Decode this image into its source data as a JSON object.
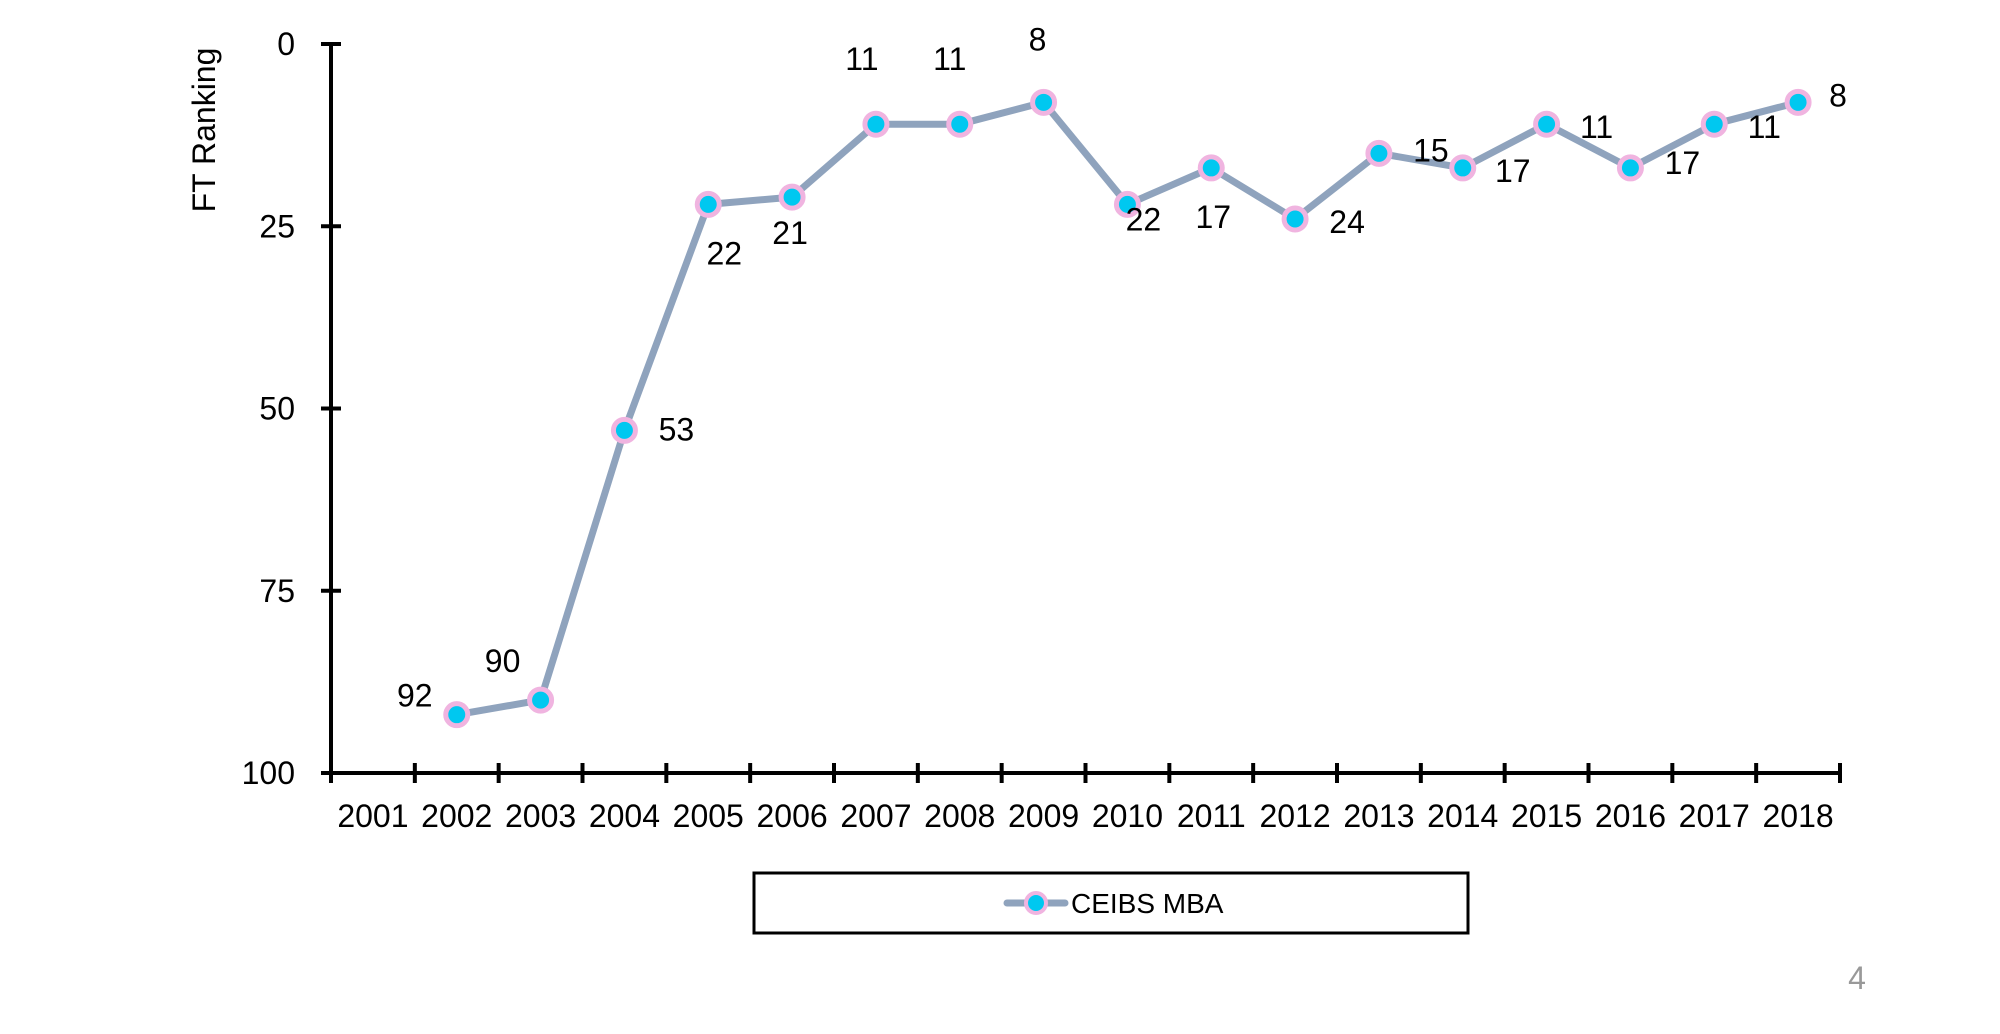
{
  "chart_data": {
    "type": "line",
    "title": "",
    "xlabel": "",
    "ylabel": "FT Ranking",
    "y_inverted": true,
    "ylim": [
      0,
      100
    ],
    "y_ticks": [
      0,
      25,
      50,
      75,
      100
    ],
    "categories": [
      "2001",
      "2002",
      "2003",
      "2004",
      "2005",
      "2006",
      "2007",
      "2008",
      "2009",
      "2010",
      "2011",
      "2012",
      "2013",
      "2014",
      "2015",
      "2016",
      "2017",
      "2018"
    ],
    "series": [
      {
        "name": "CEIBS MBA",
        "x": [
          "2002",
          "2003",
          "2004",
          "2005",
          "2006",
          "2007",
          "2008",
          "2009",
          "2010",
          "2011",
          "2012",
          "2013",
          "2014",
          "2015",
          "2016",
          "2017",
          "2018"
        ],
        "values": [
          92,
          90,
          53,
          22,
          21,
          11,
          11,
          8,
          22,
          17,
          24,
          15,
          17,
          11,
          17,
          11,
          8
        ],
        "data_labels": [
          "92",
          "90",
          "53",
          "22",
          "21",
          "11",
          "11",
          "8",
          "22",
          "17",
          "24",
          "15",
          "17",
          "11",
          "17",
          "11",
          "8"
        ]
      }
    ],
    "grid": false,
    "legend": "bottom-center",
    "colors": {
      "line": "#8FA3BD",
      "marker_fill": "#00C8F0",
      "marker_edge": "#F0B4E0",
      "axis": "#000000"
    }
  },
  "page": {
    "number": "4"
  }
}
